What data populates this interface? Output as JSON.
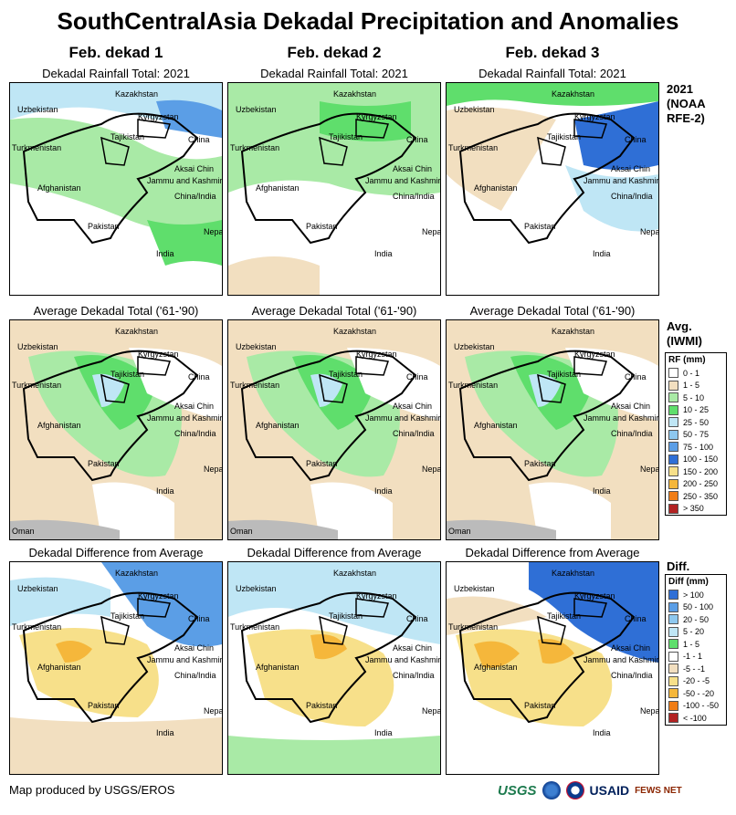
{
  "title": "SouthCentralAsia Dekadal Precipitation and Anomalies",
  "columns": [
    {
      "dekad": "Feb. dekad 1"
    },
    {
      "dekad": "Feb. dekad 2"
    },
    {
      "dekad": "Feb. dekad 3"
    }
  ],
  "rows": [
    {
      "subtitle": "Dekadal Rainfall Total: 2021",
      "side_label": [
        "2021",
        "(NOAA",
        "RFE-2)"
      ]
    },
    {
      "subtitle": "Average Dekadal Total ('61-'90)",
      "side_label": [
        "Avg.",
        "(IWMI)"
      ]
    },
    {
      "subtitle": "Dekadal Difference from Average",
      "side_label": [
        "Diff."
      ]
    }
  ],
  "map_labels": {
    "kazakhstan": "Kazakhstan",
    "uzbekistan": "Uzbekistan",
    "kyrgyzstan": "Kyrgyzstan",
    "tajikistan": "Tajikistan",
    "turkmenistan": "Turkmenistan",
    "china": "China",
    "aksai_chin": "Aksai Chin",
    "jammu_kashmir": "Jammu and Kashmir",
    "china_india": "China/India",
    "afghanistan": "Afghanistan",
    "pakistan": "Pakistan",
    "nepal": "Nepal",
    "india": "India",
    "oman": "Oman"
  },
  "rf_legend": {
    "header": "RF (mm)",
    "items": [
      {
        "label": "0 - 1",
        "color": "#ffffff"
      },
      {
        "label": "1 - 5",
        "color": "#f2dfc0"
      },
      {
        "label": "5 - 10",
        "color": "#a9eaa6"
      },
      {
        "label": "10 - 25",
        "color": "#5fde6c"
      },
      {
        "label": "25 - 50",
        "color": "#bfe6f5"
      },
      {
        "label": "50 - 75",
        "color": "#8ec8ef"
      },
      {
        "label": "75 - 100",
        "color": "#5b9ee6"
      },
      {
        "label": "100 - 150",
        "color": "#2f6fd6"
      },
      {
        "label": "150 - 200",
        "color": "#f7e08a"
      },
      {
        "label": "200 - 250",
        "color": "#f5b73b"
      },
      {
        "label": "250 - 350",
        "color": "#f07d16"
      },
      {
        "label": "> 350",
        "color": "#b22222"
      }
    ]
  },
  "diff_legend": {
    "header": "Diff (mm)",
    "items": [
      {
        "label": "> 100",
        "color": "#2f6fd6"
      },
      {
        "label": "50 - 100",
        "color": "#5b9ee6"
      },
      {
        "label": "20 - 50",
        "color": "#8ec8ef"
      },
      {
        "label": "5 - 20",
        "color": "#bfe6f5"
      },
      {
        "label": "1 - 5",
        "color": "#5fde6c"
      },
      {
        "label": "-1 - 1",
        "color": "#ffffff"
      },
      {
        "label": "-5 - -1",
        "color": "#f2dfc0"
      },
      {
        "label": "-20 - -5",
        "color": "#f7e08a"
      },
      {
        "label": "-50 - -20",
        "color": "#f5b73b"
      },
      {
        "label": "-100 - -50",
        "color": "#f07d16"
      },
      {
        "label": "< -100",
        "color": "#b22222"
      }
    ]
  },
  "footer": "Map produced by USGS/EROS",
  "logos": {
    "usgs": "USGS",
    "usaid": "USAID",
    "fews": "FEWS NET"
  }
}
